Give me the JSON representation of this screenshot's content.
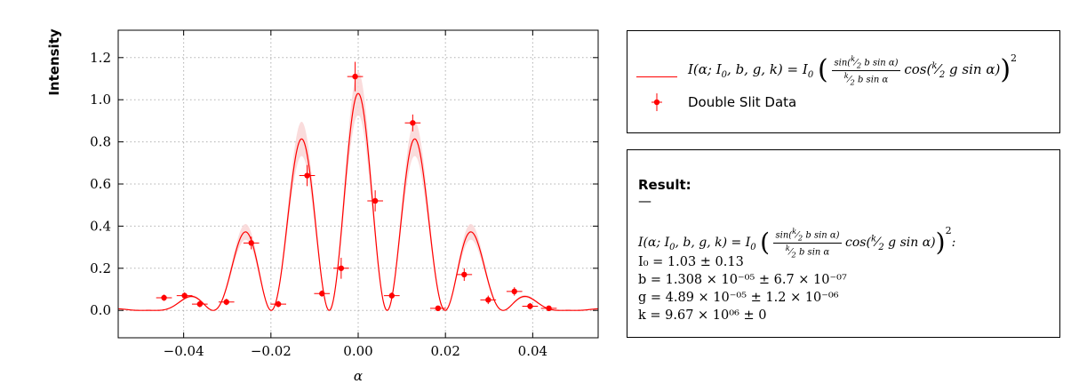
{
  "chart_data": {
    "type": "scatter",
    "title": "",
    "xlabel": "α",
    "ylabel": "Intensity",
    "xlim": [
      -0.055,
      0.055
    ],
    "ylim": [
      -0.13,
      1.33
    ],
    "xticks": [
      -0.04,
      -0.02,
      0.0,
      0.02,
      0.04
    ],
    "xtick_labels": [
      "−0.04",
      "−0.02",
      "0.00",
      "0.02",
      "0.04"
    ],
    "yticks": [
      0.0,
      0.2,
      0.4,
      0.6,
      0.8,
      1.0,
      1.2
    ],
    "ytick_labels": [
      "0.0",
      "0.2",
      "0.4",
      "0.6",
      "0.8",
      "1.0",
      "1.2"
    ],
    "grid": true,
    "series": [
      {
        "name": "Double Slit Data",
        "kind": "errorbar",
        "color": "#ff0000",
        "x": [
          -0.0445,
          -0.0398,
          -0.0363,
          -0.0302,
          -0.0245,
          -0.0183,
          -0.0117,
          -0.0083,
          -0.0039,
          -0.0007,
          0.0039,
          0.0077,
          0.0125,
          0.0183,
          0.0243,
          0.0298,
          0.0358,
          0.0394,
          0.0437
        ],
        "y": [
          0.06,
          0.07,
          0.03,
          0.04,
          0.32,
          0.03,
          0.64,
          0.08,
          0.2,
          1.11,
          0.52,
          0.07,
          0.89,
          0.01,
          0.17,
          0.05,
          0.09,
          0.02,
          0.01
        ],
        "xerr": [
          0.0018,
          0.0018,
          0.0018,
          0.0018,
          0.0018,
          0.0018,
          0.0018,
          0.0018,
          0.0018,
          0.0018,
          0.0018,
          0.0018,
          0.0018,
          0.0018,
          0.0018,
          0.0018,
          0.0018,
          0.0018,
          0.0018
        ],
        "yerr": [
          0.015,
          0.015,
          0.015,
          0.015,
          0.03,
          0.015,
          0.05,
          0.015,
          0.05,
          0.07,
          0.05,
          0.015,
          0.04,
          0.01,
          0.03,
          0.02,
          0.02,
          0.015,
          0.01
        ]
      },
      {
        "name": "I(α; I0, b, g, k) fit",
        "kind": "line",
        "color": "#ff0000",
        "band_color": "#f9d6d6",
        "params": {
          "I0": 1.03,
          "b": 1.308e-05,
          "g": 4.89e-05,
          "k": 9670000.0
        }
      }
    ]
  },
  "legend": {
    "model_lhs": "I(α; I",
    "model_rhs": "sin(k/2 b sin α) / (k/2 b sin α) · cos(k/2 g sin α)",
    "data_label": "Double Slit Data"
  },
  "result": {
    "title": "Result:",
    "dash": "—",
    "model_text": "I(α; I₀, b, g, k) = I₀ ( sin(k⁄2 b sin α) ⁄ (k⁄2 b sin α) · cos(k⁄2 g sin α) )²:",
    "I0_line": "I₀ = 1.03 ± 0.13",
    "b_line": "b = 1.308 × 10⁻⁰⁵ ± 6.7 × 10⁻⁰⁷",
    "g_line": "g = 4.89 × 10⁻⁰⁵ ± 1.2 × 10⁻⁰⁶",
    "k_line": "k = 9.67 × 10⁰⁶ ± 0"
  }
}
